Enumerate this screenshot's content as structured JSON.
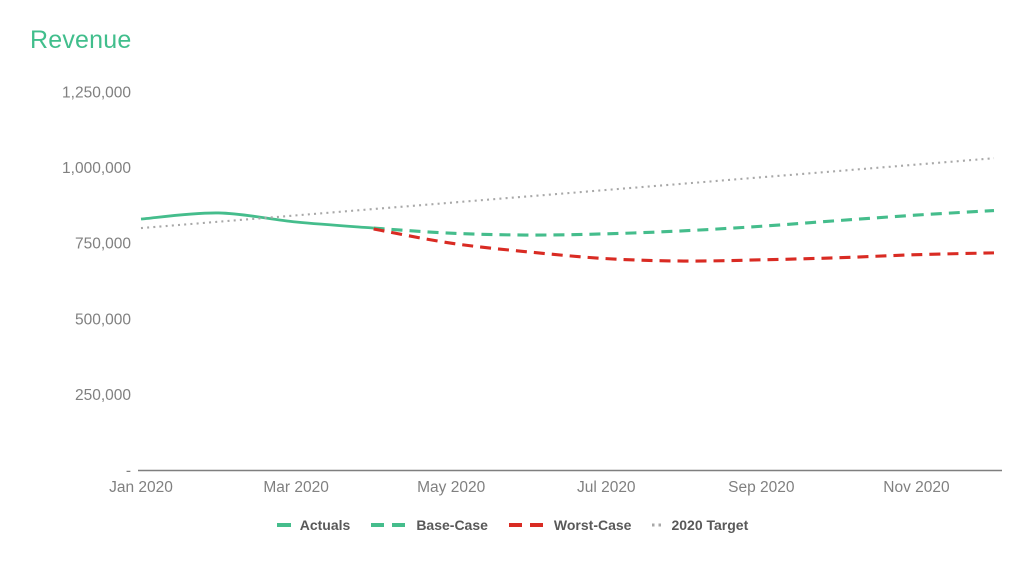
{
  "chart_data": {
    "type": "line",
    "title": "Revenue",
    "xlabel": "",
    "ylabel": "",
    "ylim": [
      0,
      1250000
    ],
    "months_total": 12,
    "grid": false,
    "legend_position": "bottom",
    "y_ticks": [
      {
        "value": 1250000,
        "label": "1,250,000"
      },
      {
        "value": 1000000,
        "label": "1,000,000"
      },
      {
        "value": 750000,
        "label": "750,000"
      },
      {
        "value": 500000,
        "label": "500,000"
      },
      {
        "value": 250000,
        "label": "250,000"
      },
      {
        "value": 0,
        "label": "-"
      }
    ],
    "x_tick_months": [
      0,
      2,
      4,
      6,
      8,
      10
    ],
    "x_tick_labels": [
      "Jan 2020",
      "Mar 2020",
      "May 2020",
      "Jul 2020",
      "Sep 2020",
      "Nov 2020"
    ],
    "series": [
      {
        "name": "Actuals",
        "color": "#45BD8C",
        "style": "solid",
        "start_month": 0,
        "values": [
          830000,
          850000,
          820000,
          800000
        ]
      },
      {
        "name": "Base-Case",
        "color": "#45BD8C",
        "style": "dashed",
        "start_month": 3,
        "values": [
          800000,
          783000,
          777000,
          781000,
          791000,
          806000,
          825000,
          843000,
          858000
        ]
      },
      {
        "name": "Worst-Case",
        "color": "#D92B23",
        "style": "dashed",
        "start_month": 3,
        "values": [
          797000,
          750000,
          721000,
          699000,
          691000,
          695000,
          702000,
          712000,
          718000
        ]
      },
      {
        "name": "2020 Target",
        "color": "#A8A8A8",
        "style": "dotted",
        "start_month": 0,
        "values": [
          800000,
          821000,
          842000,
          863000,
          884000,
          905000,
          926000,
          947000,
          968000,
          989000,
          1010000,
          1031000
        ]
      }
    ]
  },
  "colors": {
    "title": "#41BE8C",
    "axis_text": "#808080",
    "legend_text": "#595959",
    "axis_line": "#7F7F7F"
  }
}
